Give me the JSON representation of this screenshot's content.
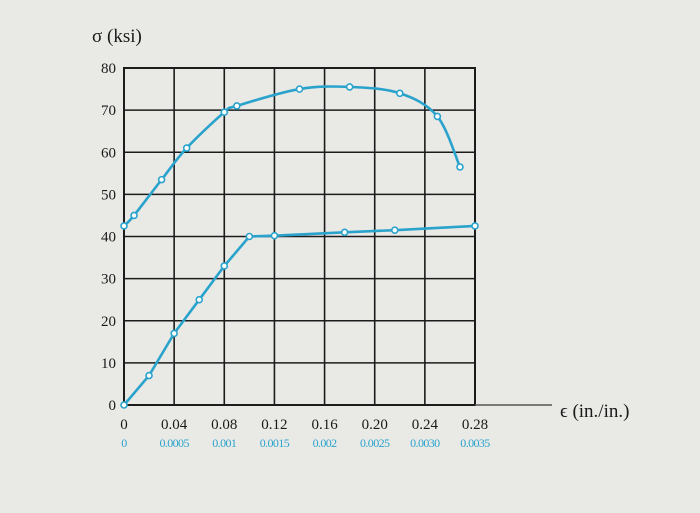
{
  "chart_data": {
    "type": "line",
    "ylabel": "σ (ksi)",
    "xlabel": "ϵ (in./in.)",
    "x_ticks": [
      "0",
      "0.04",
      "0.08",
      "0.12",
      "0.16",
      "0.20",
      "0.24",
      "0.28"
    ],
    "x_ticks_secondary": [
      "0",
      "0.0005",
      "0.001",
      "0.0015",
      "0.002",
      "0.0025",
      "0.0030",
      "0.0035"
    ],
    "y_ticks": [
      "0",
      "10",
      "20",
      "30",
      "40",
      "50",
      "60",
      "70",
      "80"
    ],
    "xlim": [
      0,
      0.28
    ],
    "xlim_secondary": [
      0,
      0.0035
    ],
    "ylim": [
      0,
      80
    ],
    "grid": true,
    "series": [
      {
        "axis": "bottom",
        "color": "#2aa3cc",
        "points": [
          [
            0,
            42.5
          ],
          [
            0.008,
            45
          ],
          [
            0.03,
            53.5
          ],
          [
            0.05,
            61
          ],
          [
            0.08,
            69.5
          ],
          [
            0.09,
            71
          ],
          [
            0.14,
            75
          ],
          [
            0.18,
            75.5
          ],
          [
            0.22,
            74
          ],
          [
            0.25,
            68.5
          ],
          [
            0.268,
            56.5
          ]
        ]
      },
      {
        "axis": "secondary",
        "color": "#2aa3cc",
        "points": [
          [
            0,
            0
          ],
          [
            0.00025,
            7
          ],
          [
            0.0005,
            17
          ],
          [
            0.00075,
            25
          ],
          [
            0.001,
            33
          ],
          [
            0.00125,
            40
          ],
          [
            0.0015,
            40.2
          ],
          [
            0.0022,
            41
          ],
          [
            0.0027,
            41.5
          ],
          [
            0.0035,
            42.5
          ]
        ]
      }
    ]
  }
}
